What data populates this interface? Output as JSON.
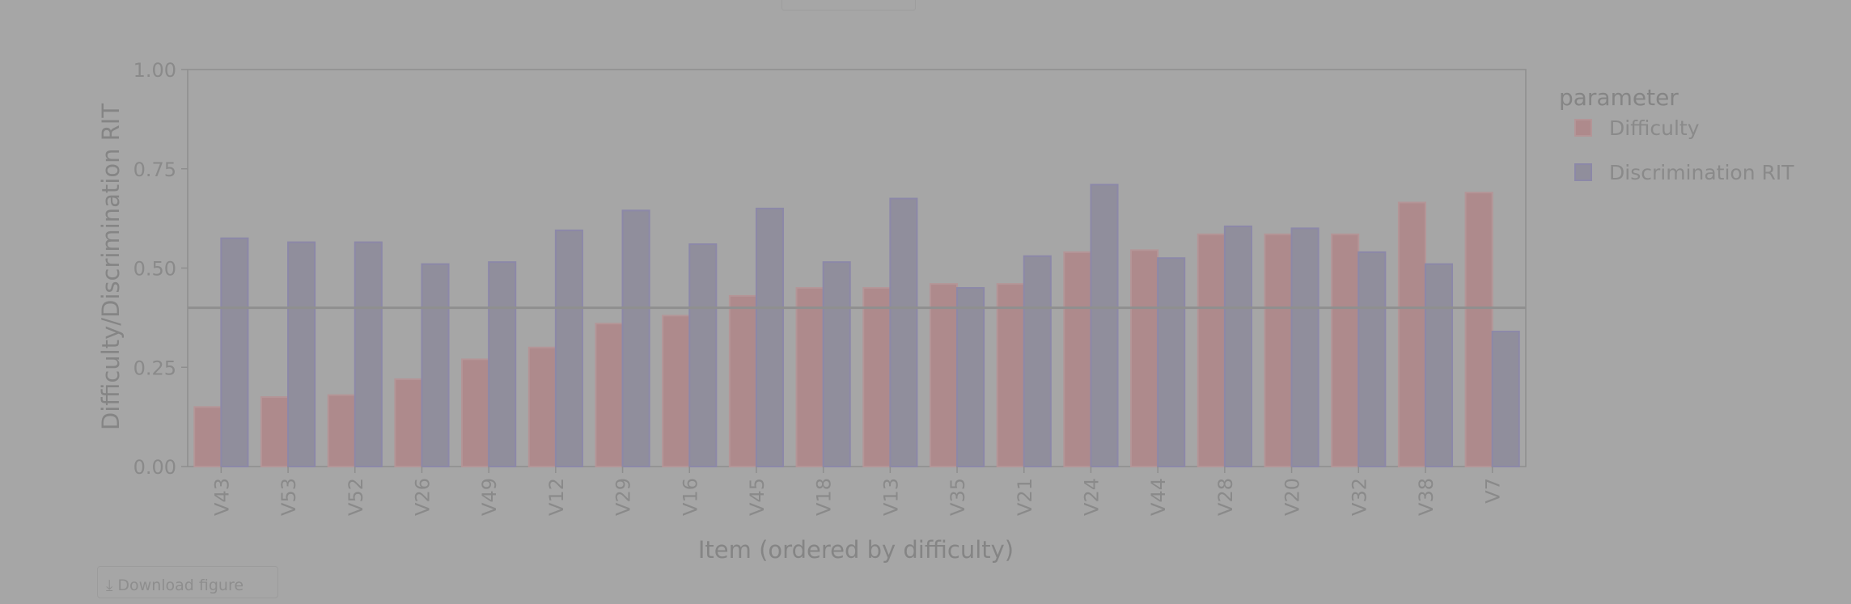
{
  "chart_data": {
    "type": "bar",
    "title": "",
    "xlabel": "Item (ordered by difficulty)",
    "ylabel": "Difficulty/Discrimination RIT",
    "ylim": [
      0,
      1
    ],
    "yticks": [
      "0.00",
      "0.25",
      "0.50",
      "0.75",
      "1.00"
    ],
    "reference_line": 0.4,
    "legend_title": "parameter",
    "legend_position": "right",
    "categories": [
      "V43",
      "V53",
      "V52",
      "V26",
      "V49",
      "V12",
      "V29",
      "V16",
      "V45",
      "V18",
      "V13",
      "V35",
      "V21",
      "V24",
      "V44",
      "V28",
      "V20",
      "V32",
      "V38",
      "V7"
    ],
    "series": [
      {
        "name": "Difficulty",
        "color": "#ae8a8c",
        "values": [
          0.15,
          0.175,
          0.18,
          0.22,
          0.27,
          0.3,
          0.36,
          0.38,
          0.43,
          0.45,
          0.45,
          0.46,
          0.46,
          0.54,
          0.545,
          0.585,
          0.585,
          0.585,
          0.665,
          0.69
        ]
      },
      {
        "name": "Discrimination RIT",
        "color": "#908e9c",
        "values": [
          0.575,
          0.565,
          0.565,
          0.51,
          0.515,
          0.595,
          0.645,
          0.56,
          0.65,
          0.515,
          0.675,
          0.45,
          0.53,
          0.71,
          0.525,
          0.605,
          0.6,
          0.54,
          0.51,
          0.34
        ]
      }
    ]
  },
  "download_label": "Download figure",
  "download_icon": "download-icon"
}
